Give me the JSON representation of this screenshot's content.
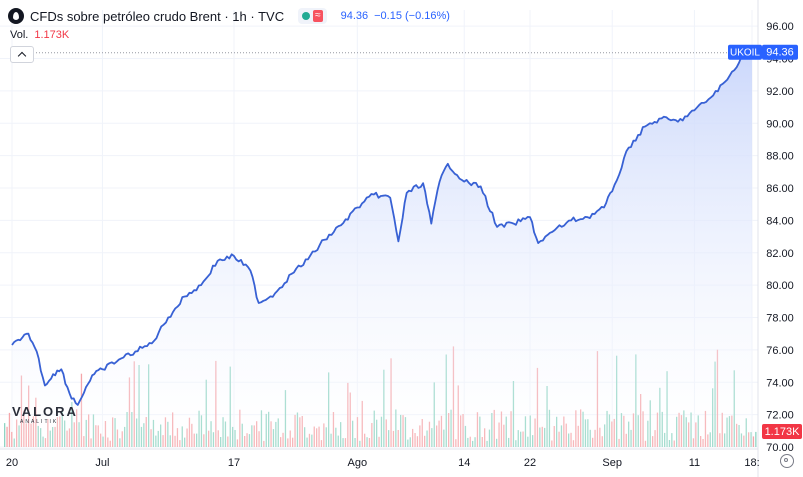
{
  "legend": {
    "title": "CFDs sobre petróleo crudo Brent · 1h · TVC",
    "price": "94.36",
    "change": "−0.15 (−0.16%)",
    "wave_glyph": "≈"
  },
  "volume": {
    "label": "Vol.",
    "value": "1.173K"
  },
  "logo": {
    "word": "VALORA",
    "sub": "ANALITIK"
  },
  "colors": {
    "line": "#3861d4",
    "area_top": "#c9d6fb",
    "area_bottom": "#ffffff",
    "vol_up": "#8fd4c3",
    "vol_down": "#f5a5a9",
    "label_blue": "#2962ff",
    "vol_label_red": "#f23645"
  },
  "icons": [
    "oil-drop-icon",
    "chevron-up-icon",
    "settings-icon"
  ],
  "chart_data": {
    "type": "area",
    "y_axis": {
      "range": [
        70,
        97
      ],
      "ticks": [
        70,
        72,
        74,
        76,
        78,
        80,
        82,
        84,
        86,
        88,
        90,
        92,
        94,
        96
      ],
      "tick_labels": [
        "70.00",
        "72.00",
        "74.00",
        "76.00",
        "78.00",
        "80.00",
        "82.00",
        "84.00",
        "86.00",
        "88.00",
        "90.00",
        "92.00",
        "94.00",
        "96.00"
      ]
    },
    "x_axis": {
      "tick_labels": [
        "20",
        "Jul",
        "17",
        "Ago",
        "14",
        "22",
        "Sep",
        "11",
        "18:"
      ]
    },
    "x_tick_dates": [
      "2023-06-20",
      "2023-07-01",
      "2023-07-17",
      "2023-08-01",
      "2023-08-14",
      "2023-08-22",
      "2023-09-01",
      "2023-09-11",
      "2023-09-18"
    ],
    "x_range": [
      "2023-06-20",
      "2023-09-18"
    ],
    "series": [
      {
        "x": [
          "2023-06-20",
          "2023-06-21",
          "2023-06-22",
          "2023-06-23",
          "2023-06-24",
          "2023-06-25",
          "2023-06-26",
          "2023-06-27",
          "2023-06-28",
          "2023-06-29",
          "2023-06-30",
          "2023-07-01",
          "2023-07-03",
          "2023-07-05",
          "2023-07-07",
          "2023-07-09",
          "2023-07-11",
          "2023-07-13",
          "2023-07-15",
          "2023-07-17",
          "2023-07-19",
          "2023-07-20",
          "2023-07-22",
          "2023-07-24",
          "2023-07-26",
          "2023-07-28",
          "2023-07-30",
          "2023-08-01",
          "2023-08-03",
          "2023-08-05",
          "2023-08-06",
          "2023-08-07",
          "2023-08-09",
          "2023-08-10",
          "2023-08-11",
          "2023-08-12",
          "2023-08-14",
          "2023-08-16",
          "2023-08-18",
          "2023-08-20",
          "2023-08-22",
          "2023-08-23",
          "2023-08-25",
          "2023-08-27",
          "2023-08-29",
          "2023-08-31",
          "2023-09-01",
          "2023-09-03",
          "2023-09-05",
          "2023-09-07",
          "2023-09-09",
          "2023-09-11",
          "2023-09-13",
          "2023-09-15",
          "2023-09-17",
          "2023-09-18"
        ],
        "y": [
          76.3,
          76.6,
          77.0,
          75.9,
          73.8,
          74.5,
          74.8,
          73.3,
          72.6,
          73.7,
          74.5,
          74.8,
          75.4,
          75.9,
          76.4,
          78.0,
          79.3,
          80.0,
          81.5,
          81.8,
          80.9,
          78.9,
          79.5,
          80.7,
          81.6,
          82.8,
          83.7,
          84.8,
          85.6,
          85.4,
          82.7,
          85.7,
          86.3,
          83.8,
          86.4,
          87.5,
          86.4,
          86.1,
          83.6,
          83.8,
          84.2,
          82.6,
          83.4,
          84.0,
          84.2,
          84.8,
          85.8,
          88.5,
          89.8,
          90.3,
          90.1,
          90.8,
          91.6,
          92.7,
          94.3,
          94.36
        ]
      }
    ],
    "last_value_label": "94.36",
    "symbol_label": "UKOIL",
    "volume_label": "1.173K",
    "grid": true
  }
}
